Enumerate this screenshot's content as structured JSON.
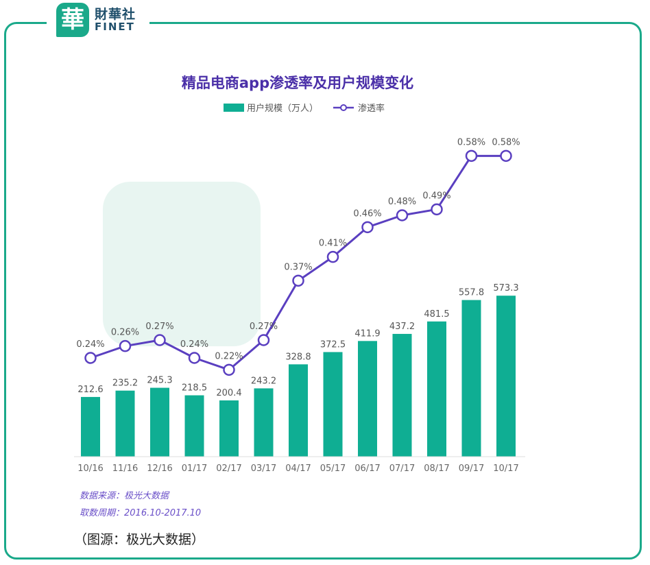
{
  "logo": {
    "mark": "華",
    "name_cn": "財華社",
    "name_en": "FINET"
  },
  "caption": "（图源：极光大数据）",
  "colors": {
    "frame": "#1aa98a",
    "bar": "#0fae93",
    "line": "#5a3fc0",
    "title": "#4a2fa8",
    "watermark": "#cfe9e2"
  },
  "chart_data": {
    "type": "bar",
    "title": "精品电商app渗透率及用户规模变化",
    "categories": [
      "10/16",
      "11/16",
      "12/16",
      "01/17",
      "02/17",
      "03/17",
      "04/17",
      "05/17",
      "06/17",
      "07/17",
      "08/17",
      "09/17",
      "10/17"
    ],
    "series": [
      {
        "name": "用户规模（万人）",
        "type": "bar",
        "values": [
          212.6,
          235.2,
          245.3,
          218.5,
          200.4,
          243.2,
          328.8,
          372.5,
          411.9,
          437.2,
          481.5,
          557.8,
          573.3
        ],
        "labels": [
          "212.6",
          "235.2",
          "245.3",
          "218.5",
          "200.4",
          "243.2",
          "328.8",
          "372.5",
          "411.9",
          "437.2",
          "481.5",
          "557.8",
          "573.3"
        ]
      },
      {
        "name": "渗透率",
        "type": "line",
        "values": [
          0.24,
          0.26,
          0.27,
          0.24,
          0.22,
          0.27,
          0.37,
          0.41,
          0.46,
          0.48,
          0.49,
          0.58,
          0.58
        ],
        "labels": [
          "0.24%",
          "0.26%",
          "0.27%",
          "0.24%",
          "0.22%",
          "0.27%",
          "0.37%",
          "0.41%",
          "0.46%",
          "0.48%",
          "0.49%",
          "0.58%",
          "0.58%"
        ]
      }
    ],
    "legend_position": "top",
    "grid": false,
    "ylim_bar": [
      0,
      1050
    ],
    "ylim_line": [
      0,
      0.9
    ],
    "source_lines": [
      "数据来源：极光大数据",
      "取数周期：2016.10-2017.10"
    ]
  }
}
